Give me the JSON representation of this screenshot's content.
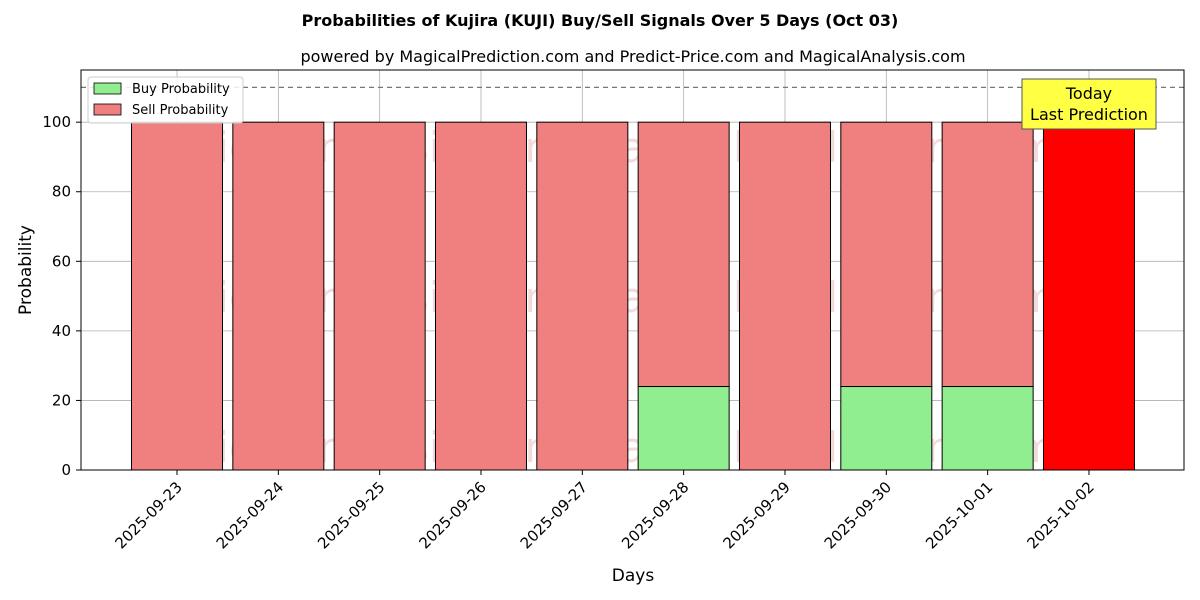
{
  "chart_data": {
    "type": "bar",
    "title": "Probabilities of Kujira (KUJI) Buy/Sell Signals Over 5 Days (Oct 03)",
    "subtitle": "powered by MagicalPrediction.com and Predict-Price.com and MagicalAnalysis.com",
    "xlabel": "Days",
    "ylabel": "Probability",
    "ylim": [
      0,
      115
    ],
    "yticks": [
      0,
      20,
      40,
      60,
      80,
      100
    ],
    "grid": true,
    "stacked": true,
    "legend_position": "top-left",
    "reference_line": 110,
    "categories": [
      "2025-09-23",
      "2025-09-24",
      "2025-09-25",
      "2025-09-26",
      "2025-09-27",
      "2025-09-28",
      "2025-09-29",
      "2025-09-30",
      "2025-10-01",
      "2025-10-02"
    ],
    "series": [
      {
        "name": "Buy Probability",
        "color": "#90ee90",
        "values": [
          0,
          0,
          0,
          0,
          0,
          24,
          0,
          24,
          24,
          0
        ]
      },
      {
        "name": "Sell Probability",
        "color": "#f08080",
        "values": [
          100,
          100,
          100,
          100,
          100,
          76,
          100,
          76,
          76,
          100
        ]
      }
    ],
    "highlight": {
      "index": 9,
      "color": "#ff0000"
    },
    "annotation": {
      "lines": [
        "Today",
        "Last Prediction"
      ],
      "background": "#ffff44"
    },
    "watermarks": [
      "MagicalAnalysis.com",
      "MagicalPrediction.com"
    ]
  }
}
